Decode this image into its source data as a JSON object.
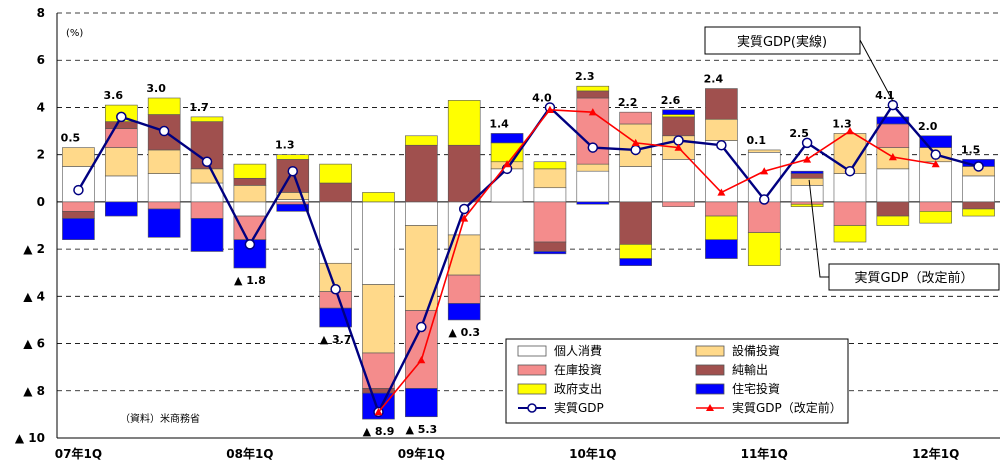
{
  "chart_data": {
    "type": "bar",
    "title": "",
    "unit_label": "(%)",
    "source_note": "（資料）米商務省",
    "ylim": [
      -10,
      8
    ],
    "yticks": [
      {
        "value": 8,
        "label": "8"
      },
      {
        "value": 6,
        "label": "6"
      },
      {
        "value": 4,
        "label": "4"
      },
      {
        "value": 2,
        "label": "2"
      },
      {
        "value": 0,
        "label": "0"
      },
      {
        "value": -2,
        "label": "▲ 2"
      },
      {
        "value": -4,
        "label": "▲ 4"
      },
      {
        "value": -6,
        "label": "▲ 6"
      },
      {
        "value": -8,
        "label": "▲ 8"
      },
      {
        "value": -10,
        "label": "▲ 10"
      }
    ],
    "x_tick_labels": [
      {
        "index": 0,
        "label": "07年1Q"
      },
      {
        "index": 4,
        "label": "08年1Q"
      },
      {
        "index": 8,
        "label": "09年1Q"
      },
      {
        "index": 12,
        "label": "10年1Q"
      },
      {
        "index": 16,
        "label": "11年1Q"
      },
      {
        "index": 20,
        "label": "12年1Q"
      }
    ],
    "categories": [
      "07Q1",
      "07Q2",
      "07Q3",
      "07Q4",
      "08Q1",
      "08Q2",
      "08Q3",
      "08Q4",
      "09Q1",
      "09Q2",
      "09Q3",
      "09Q4",
      "10Q1",
      "10Q2",
      "10Q3",
      "10Q4",
      "11Q1",
      "11Q2",
      "11Q3",
      "11Q4",
      "12Q1",
      "12Q2"
    ],
    "stacked_series": [
      {
        "name": "個人消費",
        "color": "#ffffff",
        "values": [
          1.5,
          1.1,
          1.2,
          0.8,
          -0.6,
          0.1,
          -2.6,
          -3.5,
          -1.0,
          -1.4,
          1.4,
          0.6,
          1.3,
          1.5,
          1.8,
          2.6,
          2.1,
          0.7,
          1.2,
          1.4,
          1.7,
          1.1
        ]
      },
      {
        "name": "設備投資",
        "color": "#ffd98a",
        "values": [
          0.8,
          1.2,
          1.0,
          0.6,
          0.7,
          0.3,
          -1.2,
          -2.9,
          -3.6,
          -1.7,
          0.3,
          0.8,
          0.3,
          1.8,
          1.0,
          0.9,
          0.1,
          0.3,
          1.7,
          0.9,
          0.6,
          0.4
        ]
      },
      {
        "name": "在庫投資",
        "color": "#f48c8c",
        "values": [
          -0.4,
          0.8,
          -0.3,
          -0.7,
          -1.0,
          -0.1,
          -0.7,
          -1.5,
          -3.3,
          -1.2,
          0.0,
          -1.7,
          2.8,
          0.5,
          -0.2,
          -0.6,
          -1.3,
          -0.1,
          -1.0,
          1.0,
          -0.4,
          0.0
        ]
      },
      {
        "name": "純輸出",
        "color": "#a0504e",
        "values": [
          -0.3,
          0.3,
          1.5,
          2.0,
          0.3,
          1.4,
          0.8,
          -0.2,
          2.4,
          2.4,
          0.0,
          -0.4,
          0.3,
          -1.8,
          0.8,
          1.3,
          0.0,
          0.2,
          0.0,
          -0.6,
          0.0,
          -0.3
        ]
      },
      {
        "name": "政府支出",
        "color": "#ffff00",
        "values": [
          0.0,
          0.7,
          0.7,
          0.2,
          0.6,
          0.2,
          0.8,
          0.4,
          0.4,
          1.9,
          0.8,
          0.3,
          0.2,
          -0.6,
          0.1,
          -1.0,
          -1.4,
          -0.1,
          -0.7,
          -0.4,
          -0.5,
          -0.3
        ]
      },
      {
        "name": "住宅投資",
        "color": "#0000ff",
        "values": [
          -0.9,
          -0.6,
          -1.2,
          -1.4,
          -1.2,
          -0.3,
          -0.8,
          -1.1,
          -1.2,
          -0.7,
          0.4,
          -0.1,
          -0.1,
          -0.3,
          0.2,
          -0.8,
          0.0,
          0.1,
          0.0,
          0.3,
          0.5,
          0.3
        ]
      }
    ],
    "line_series": [
      {
        "name": "実質GDP",
        "color": "#000080",
        "marker": "circle",
        "values": [
          0.5,
          3.6,
          3.0,
          1.7,
          -1.8,
          1.3,
          -3.7,
          -8.9,
          -5.3,
          -0.3,
          1.4,
          4.0,
          2.3,
          2.2,
          2.6,
          2.4,
          0.1,
          2.5,
          1.3,
          4.1,
          2.0,
          1.5
        ]
      },
      {
        "name": "実質GDP（改定前）",
        "color": "#ff0000",
        "marker": "triangle",
        "start_index": 7,
        "values": [
          -8.9,
          -6.7,
          -0.7,
          1.6,
          3.9,
          3.8,
          2.5,
          2.3,
          0.4,
          1.3,
          1.8,
          3.0,
          1.9,
          1.6
        ]
      }
    ],
    "data_labels": [
      {
        "index": 0,
        "text": "0.5",
        "value": 0.5,
        "pos": "above"
      },
      {
        "index": 1,
        "text": "3.6",
        "value": 3.6,
        "pos": "above"
      },
      {
        "index": 2,
        "text": "3.0",
        "value": 3.0,
        "pos": "above"
      },
      {
        "index": 3,
        "text": "1.7",
        "value": 1.7,
        "pos": "above"
      },
      {
        "index": 4,
        "text": "▲ 1.8",
        "value": -1.8,
        "pos": "below"
      },
      {
        "index": 5,
        "text": "1.3",
        "value": 1.3,
        "pos": "above"
      },
      {
        "index": 6,
        "text": "▲ 3.7",
        "value": -3.7,
        "pos": "below"
      },
      {
        "index": 7,
        "text": "▲ 8.9",
        "value": -8.9,
        "pos": "below"
      },
      {
        "index": 8,
        "text": "▲ 5.3",
        "value": -5.3,
        "pos": "below"
      },
      {
        "index": 9,
        "text": "▲ 0.3",
        "value": -0.3,
        "pos": "below"
      },
      {
        "index": 10,
        "text": "1.4",
        "value": 1.4,
        "pos": "above"
      },
      {
        "index": 11,
        "text": "4.0",
        "value": 4.0,
        "pos": "above"
      },
      {
        "index": 12,
        "text": "2.3",
        "value": 2.3,
        "pos": "above"
      },
      {
        "index": 13,
        "text": "2.2",
        "value": 2.2,
        "pos": "above"
      },
      {
        "index": 14,
        "text": "2.6",
        "value": 2.6,
        "pos": "above"
      },
      {
        "index": 15,
        "text": "2.4",
        "value": 2.4,
        "pos": "above"
      },
      {
        "index": 16,
        "text": "0.1",
        "value": 0.1,
        "pos": "above"
      },
      {
        "index": 17,
        "text": "2.5",
        "value": 2.5,
        "pos": "above"
      },
      {
        "index": 18,
        "text": "1.3",
        "value": 1.3,
        "pos": "above"
      },
      {
        "index": 19,
        "text": "4.1",
        "value": 4.1,
        "pos": "above"
      },
      {
        "index": 20,
        "text": "2.0",
        "value": 2.0,
        "pos": "above"
      },
      {
        "index": 21,
        "text": "1.5",
        "value": 1.5,
        "pos": "above"
      }
    ],
    "callouts": [
      {
        "text": "実質GDP(実線)",
        "target_index": 19,
        "target_value": 4.1
      },
      {
        "text": "実質GDP（改定前）",
        "target_index": 17,
        "target_value": 1.1
      }
    ],
    "grid": "horizontal-dashed",
    "legend": {
      "placement": "bottom-center",
      "entries": [
        {
          "label": "個人消費",
          "kind": "box",
          "color": "#ffffff"
        },
        {
          "label": "設備投資",
          "kind": "box",
          "color": "#ffd98a"
        },
        {
          "label": "在庫投資",
          "kind": "box",
          "color": "#f48c8c"
        },
        {
          "label": "純輸出",
          "kind": "box",
          "color": "#a0504e"
        },
        {
          "label": "政府支出",
          "kind": "box",
          "color": "#ffff00"
        },
        {
          "label": "住宅投資",
          "kind": "box",
          "color": "#0000ff"
        },
        {
          "label": "実質GDP",
          "kind": "line-circle",
          "color": "#000080"
        },
        {
          "label": "実質GDP（改定前）",
          "kind": "line-triangle",
          "color": "#ff0000"
        }
      ]
    }
  }
}
